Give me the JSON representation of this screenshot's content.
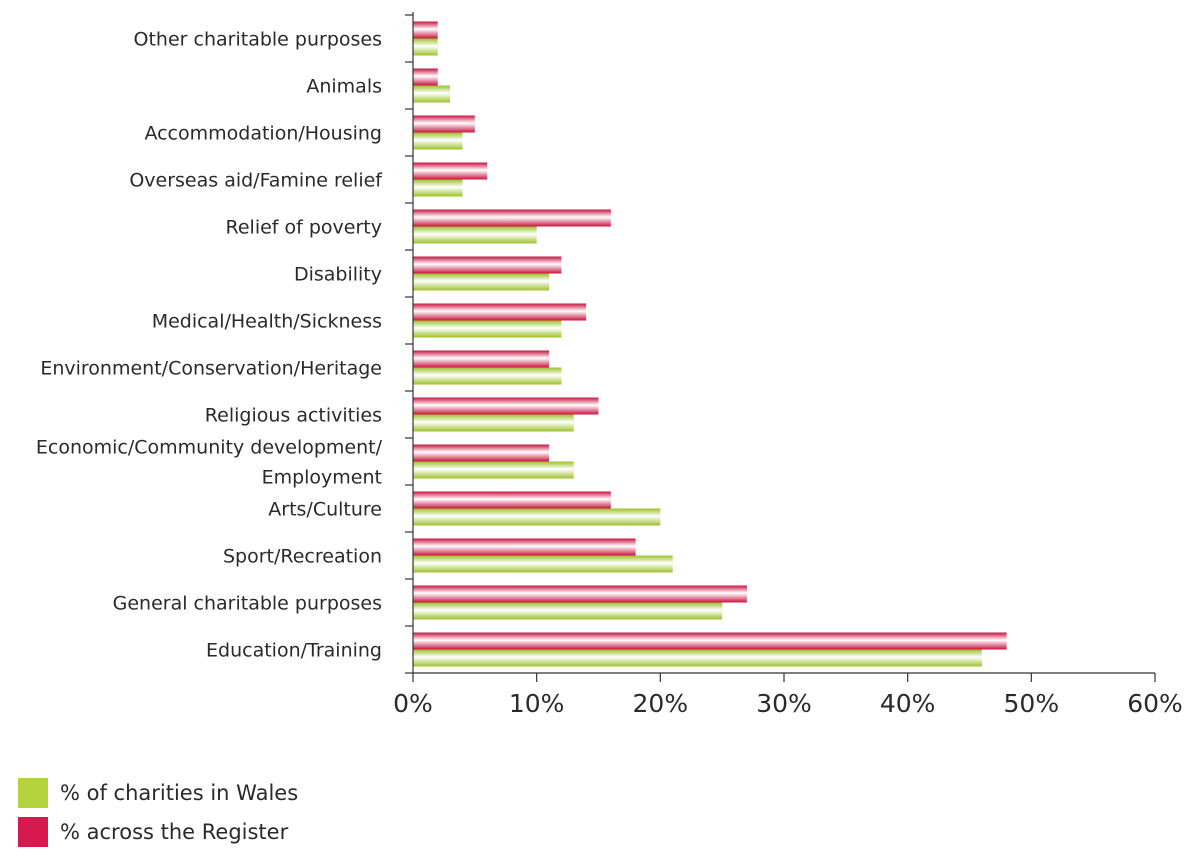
{
  "colors": {
    "wales": "#b5d33d",
    "register": "#d61a4f"
  },
  "legend": {
    "items": [
      {
        "label": "% of charities in Wales",
        "color": "#b5d33d"
      },
      {
        "label": "% across the Register",
        "color": "#d61a4f"
      }
    ]
  },
  "chart_data": {
    "type": "bar",
    "orientation": "horizontal",
    "title": "",
    "xlabel": "",
    "ylabel": "",
    "xlim": [
      0,
      60
    ],
    "x_ticks": [
      "0%",
      "10%",
      "20%",
      "30%",
      "40%",
      "50%",
      "60%"
    ],
    "grid": false,
    "legend_position": "bottom-left",
    "categories": [
      [
        "Other charitable purposes"
      ],
      [
        "Animals"
      ],
      [
        "Accommodation/Housing"
      ],
      [
        "Overseas aid/Famine relief"
      ],
      [
        "Relief of poverty"
      ],
      [
        "Disability"
      ],
      [
        "Medical/Health/Sickness"
      ],
      [
        "Environment/Conservation/Heritage"
      ],
      [
        "Religious activities"
      ],
      [
        "Economic/Community development/",
        "Employment"
      ],
      [
        "Arts/Culture"
      ],
      [
        "Sport/Recreation"
      ],
      [
        "General charitable purposes"
      ],
      [
        "Education/Training"
      ]
    ],
    "series": [
      {
        "name": "% across the Register",
        "values": [
          2,
          2,
          5,
          6,
          16,
          12,
          14,
          11,
          15,
          11,
          16,
          18,
          27,
          48
        ]
      },
      {
        "name": "% of charities in Wales",
        "values": [
          2,
          3,
          4,
          4,
          10,
          11,
          12,
          12,
          13,
          13,
          20,
          21,
          25,
          46
        ]
      }
    ]
  }
}
